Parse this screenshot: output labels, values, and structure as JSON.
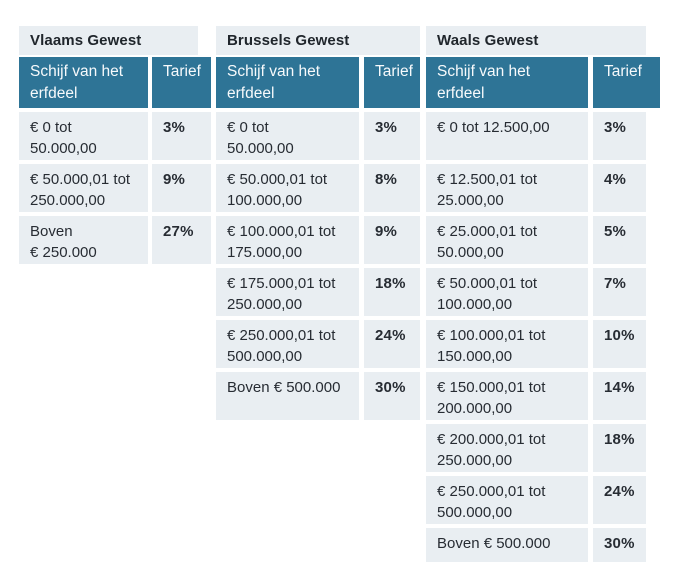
{
  "colors": {
    "header_bg": "#2e7496",
    "header_text": "#f7fafc",
    "cell_bg": "#e9eef2",
    "text": "#272c33",
    "page_bg": "#ffffff"
  },
  "tables": [
    {
      "title": "Vlaams Gewest",
      "columns": {
        "schijf": "Schijf van het\nerfdeel",
        "tarief": "Tarief"
      },
      "rows": [
        {
          "schijf": "€ 0 tot\n50.000,00",
          "tarief": "3%"
        },
        {
          "schijf": "€ 50.000,01 tot\n250.000,00",
          "tarief": "9%"
        },
        {
          "schijf": "Boven\n€ 250.000",
          "tarief": "27%"
        }
      ]
    },
    {
      "title": "Brussels Gewest",
      "columns": {
        "schijf": "Schijf van het\nerfdeel",
        "tarief": "Tarief"
      },
      "rows": [
        {
          "schijf": "€ 0 tot\n50.000,00",
          "tarief": "3%"
        },
        {
          "schijf": "€ 50.000,01 tot\n100.000,00",
          "tarief": "8%"
        },
        {
          "schijf": "€ 100.000,01 tot\n175.000,00",
          "tarief": "9%"
        },
        {
          "schijf": "€ 175.000,01 tot\n250.000,00",
          "tarief": "18%"
        },
        {
          "schijf": "€ 250.000,01 tot\n500.000,00",
          "tarief": "24%"
        },
        {
          "schijf": "Boven € 500.000",
          "tarief": "30%"
        }
      ]
    },
    {
      "title": "Waals Gewest",
      "columns": {
        "schijf": "Schijf van het\nerfdeel",
        "tarief": "Tarief"
      },
      "rows": [
        {
          "schijf": "€ 0 tot 12.500,00",
          "tarief": "3%"
        },
        {
          "schijf": "€ 12.500,01 tot\n25.000,00",
          "tarief": "4%"
        },
        {
          "schijf": "€ 25.000,01 tot\n50.000,00",
          "tarief": "5%"
        },
        {
          "schijf": "€ 50.000,01 tot\n100.000,00",
          "tarief": "7%"
        },
        {
          "schijf": "€ 100.000,01 tot\n150.000,00",
          "tarief": "10%"
        },
        {
          "schijf": "€ 150.000,01 tot\n200.000,00",
          "tarief": "14%"
        },
        {
          "schijf": "€ 200.000,01 tot\n250.000,00",
          "tarief": "18%"
        },
        {
          "schijf": "€ 250.000,01 tot\n500.000,00",
          "tarief": "24%"
        },
        {
          "schijf": "Boven € 500.000",
          "tarief": "30%"
        }
      ]
    }
  ]
}
